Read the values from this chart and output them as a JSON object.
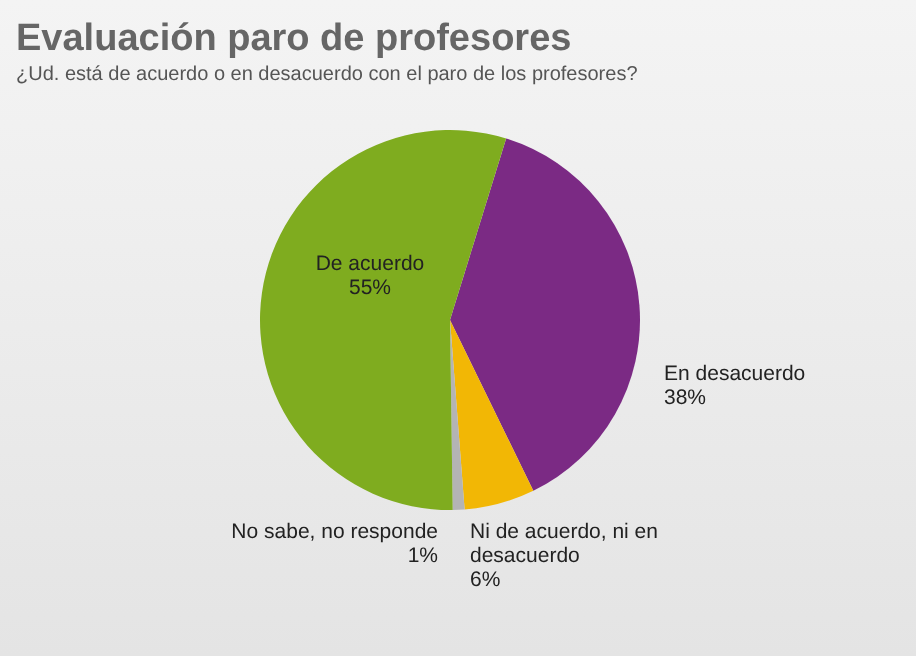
{
  "chart_data": {
    "type": "pie",
    "title": "Evaluación paro de profesores",
    "subtitle": "¿Ud. está de acuerdo o en desacuerdo con el paro de los profesores?",
    "categories": [
      "En desacuerdo",
      "Ni de acuerdo, ni en desacuerdo",
      "No sabe, no responde",
      "De acuerdo"
    ],
    "values": [
      38,
      6,
      1,
      55
    ],
    "value_labels": [
      "38%",
      "6%",
      "1%",
      "55%"
    ],
    "colors": [
      "#7b2a84",
      "#f2b705",
      "#b4b4b4",
      "#7fac1f"
    ]
  }
}
